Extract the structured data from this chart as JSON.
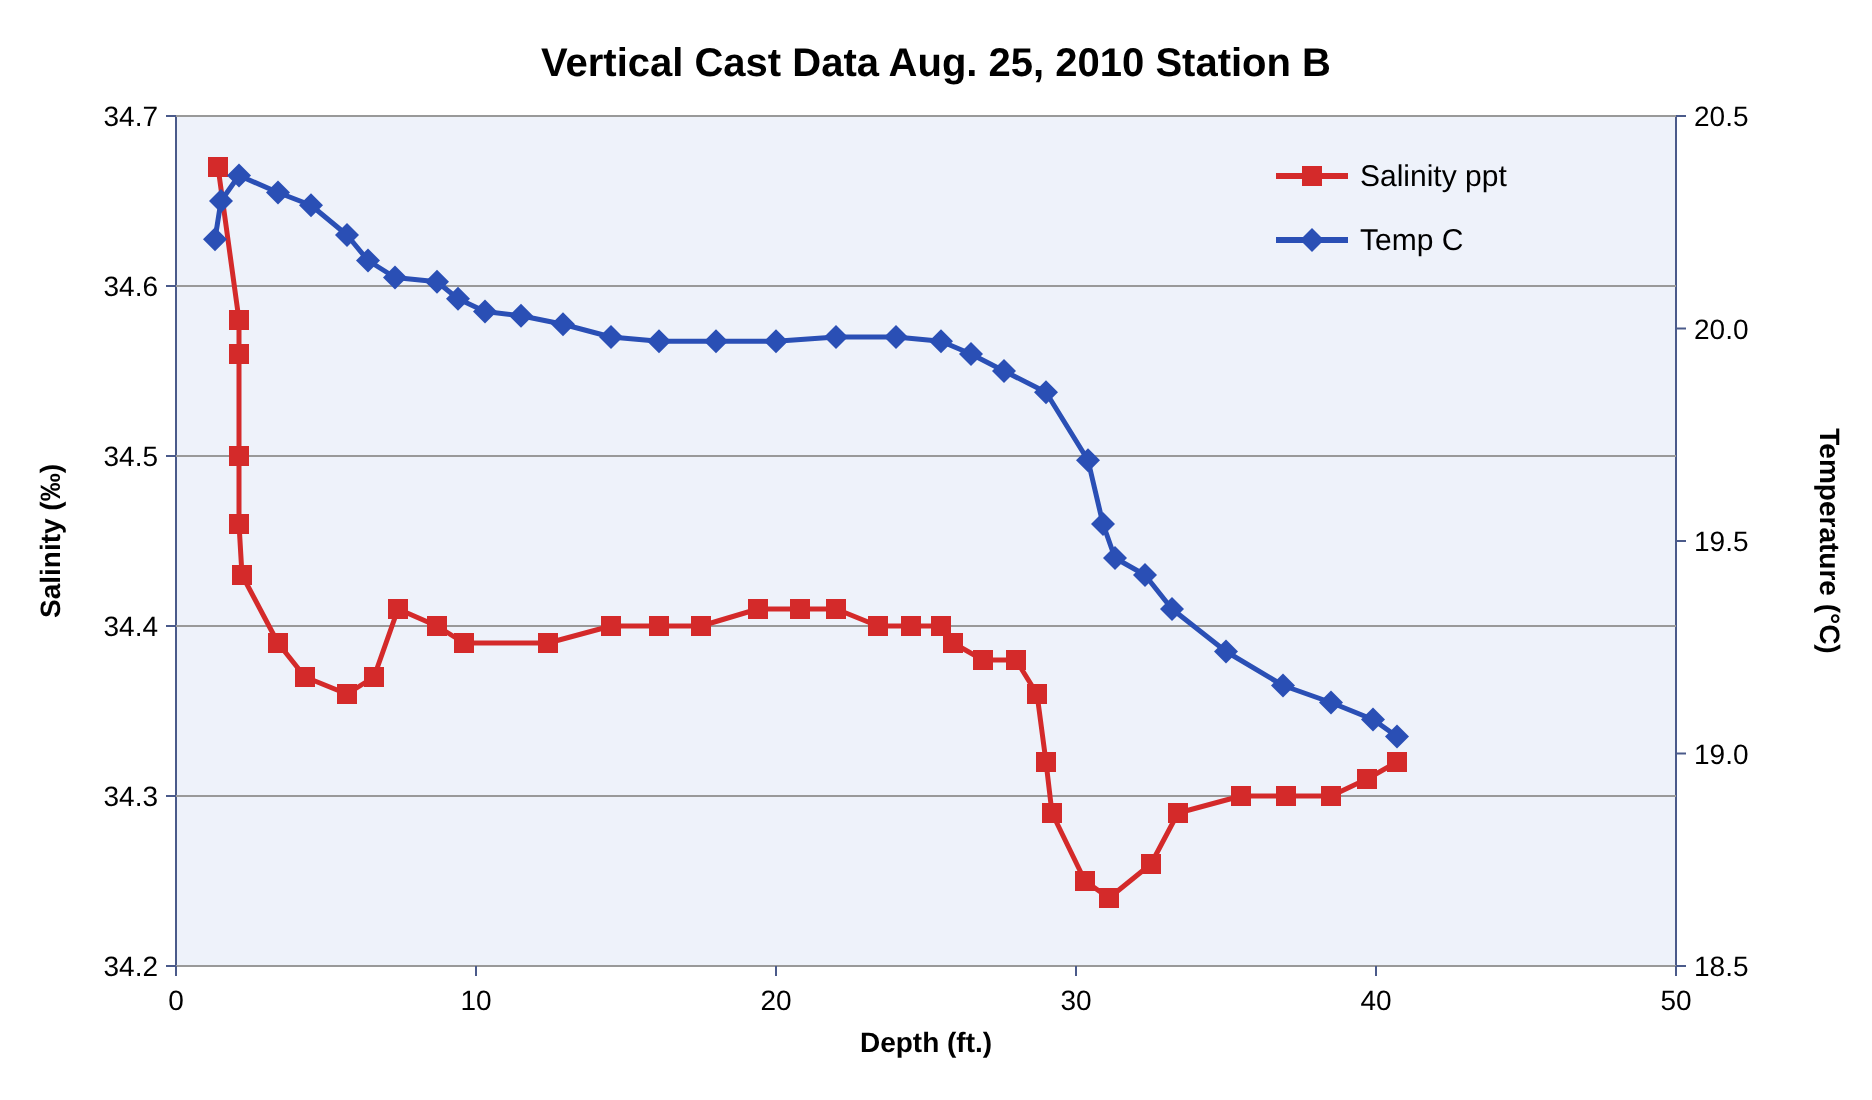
{
  "chart_data": {
    "type": "line",
    "title": "Vertical Cast Data Aug. 25, 2010 Station B",
    "xlabel": "Depth (ft.)",
    "ylabel": "Salinity (‰)",
    "y2label": "Temperature (°C)",
    "xlim": [
      0,
      50
    ],
    "xticks": [
      0,
      10,
      20,
      30,
      40,
      50
    ],
    "ylim": [
      34.2,
      34.7
    ],
    "yticks": [
      34.2,
      34.3,
      34.4,
      34.5,
      34.6,
      34.7
    ],
    "y2lim": [
      18.5,
      20.5
    ],
    "y2ticks": [
      18.5,
      {
        "value": 19,
        "label": "19.0"
      },
      19.5,
      {
        "value": 20,
        "label": "20.0"
      },
      20.5
    ],
    "grid": "y",
    "legend": "top right",
    "series": [
      {
        "name": "Salinity ppt",
        "color": "#d42a2a",
        "marker": "square",
        "x": [
          1.4,
          2.1,
          2.1,
          2.1,
          2.1,
          2.2,
          3.4,
          4.3,
          5.7,
          6.6,
          7.4,
          8.7,
          9.6,
          12.4,
          14.5,
          16.1,
          17.5,
          19.4,
          20.8,
          22.0,
          23.4,
          24.5,
          25.5,
          25.9,
          26.9,
          28.0,
          28.7,
          29.0,
          29.2,
          30.3,
          31.1,
          32.5,
          33.4,
          35.5,
          37.0,
          38.5,
          39.7,
          40.7
        ],
        "values": [
          34.67,
          34.58,
          34.56,
          34.5,
          34.46,
          34.43,
          34.39,
          34.37,
          34.36,
          34.37,
          34.41,
          34.4,
          34.39,
          34.39,
          34.4,
          34.4,
          34.4,
          34.41,
          34.41,
          34.41,
          34.4,
          34.4,
          34.4,
          34.39,
          34.38,
          34.38,
          34.36,
          34.32,
          34.29,
          34.25,
          34.24,
          34.26,
          34.29,
          34.3,
          34.3,
          34.3,
          34.31,
          34.32
        ]
      },
      {
        "name": "Temp C",
        "color": "#2a4fb5",
        "marker": "diamond",
        "axis": "y2",
        "x": [
          1.3,
          1.5,
          2.1,
          3.4,
          4.5,
          5.7,
          6.4,
          7.3,
          8.7,
          9.4,
          10.3,
          11.5,
          12.9,
          14.5,
          16.1,
          18.0,
          20.0,
          22.0,
          24.0,
          25.5,
          26.5,
          27.6,
          29.0,
          30.4,
          30.9,
          31.3,
          32.3,
          33.2,
          35.0,
          36.9,
          38.5,
          39.9,
          40.7
        ],
        "values": [
          20.21,
          20.3,
          20.36,
          20.32,
          20.29,
          20.22,
          20.16,
          20.12,
          20.11,
          20.07,
          20.04,
          20.03,
          20.01,
          19.98,
          19.97,
          19.97,
          19.97,
          19.98,
          19.98,
          19.97,
          19.94,
          19.9,
          19.85,
          19.69,
          19.54,
          19.46,
          19.42,
          19.34,
          19.24,
          19.16,
          19.12,
          19.08,
          19.04
        ]
      }
    ]
  }
}
